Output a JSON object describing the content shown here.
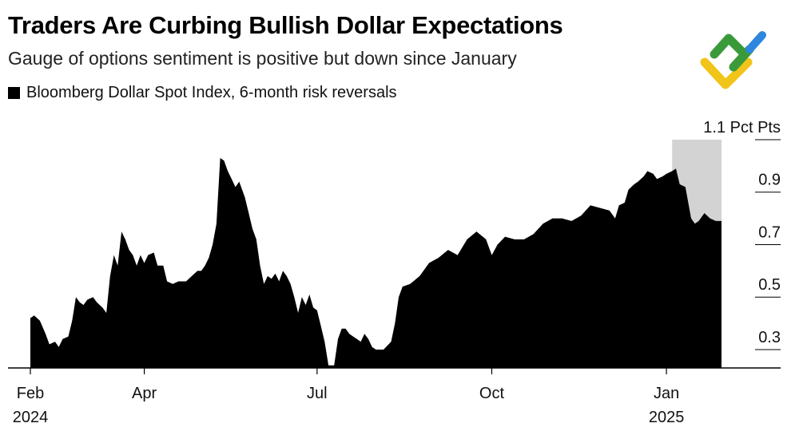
{
  "title": "Traders Are Curbing Bullish Dollar Expectations",
  "subtitle": "Gauge of options sentiment is positive but down since January",
  "legend_label": "Bloomberg Dollar Spot Index, 6-month risk reversals",
  "colors": {
    "area": "#000000",
    "highlight": "#d3d3d3",
    "logo_green": "#3a9a3a",
    "logo_yellow": "#f0c419",
    "logo_blue": "#2e86de"
  },
  "logo_icon": "brand-logo-icon",
  "chart_data": {
    "type": "area",
    "title": "Traders Are Curbing Bullish Dollar Expectations",
    "ylabel": "Pct Pts",
    "y_unit_label": "1.1 Pct Pts",
    "ylim": [
      0.23,
      1.1
    ],
    "y_ticks": [
      {
        "value": 1.1,
        "label": "1.1 Pct Pts"
      },
      {
        "value": 0.9,
        "label": "0.9"
      },
      {
        "value": 0.7,
        "label": "0.7"
      },
      {
        "value": 0.5,
        "label": "0.5"
      },
      {
        "value": 0.3,
        "label": "0.3"
      }
    ],
    "x_ticks": [
      {
        "day": 0,
        "line1": "Feb",
        "line2": "2024"
      },
      {
        "day": 60,
        "line1": "Apr",
        "line2": ""
      },
      {
        "day": 151,
        "line1": "Jul",
        "line2": ""
      },
      {
        "day": 243,
        "line1": "Oct",
        "line2": ""
      },
      {
        "day": 335,
        "line1": "Jan",
        "line2": "2025"
      }
    ],
    "x_range_days": [
      0,
      364
    ],
    "highlight_range_days": [
      338,
      364
    ],
    "series": [
      {
        "name": "Bloomberg Dollar Spot Index, 6-month risk reversals",
        "points": [
          [
            0,
            0.42
          ],
          [
            2,
            0.43
          ],
          [
            5,
            0.41
          ],
          [
            8,
            0.36
          ],
          [
            10,
            0.32
          ],
          [
            13,
            0.33
          ],
          [
            15,
            0.31
          ],
          [
            17,
            0.34
          ],
          [
            20,
            0.35
          ],
          [
            22,
            0.41
          ],
          [
            24,
            0.5
          ],
          [
            26,
            0.48
          ],
          [
            28,
            0.47
          ],
          [
            30,
            0.49
          ],
          [
            33,
            0.5
          ],
          [
            35,
            0.48
          ],
          [
            38,
            0.46
          ],
          [
            40,
            0.44
          ],
          [
            42,
            0.58
          ],
          [
            44,
            0.66
          ],
          [
            46,
            0.62
          ],
          [
            48,
            0.75
          ],
          [
            50,
            0.72
          ],
          [
            52,
            0.68
          ],
          [
            54,
            0.66
          ],
          [
            56,
            0.62
          ],
          [
            58,
            0.66
          ],
          [
            60,
            0.63
          ],
          [
            62,
            0.66
          ],
          [
            65,
            0.67
          ],
          [
            67,
            0.62
          ],
          [
            70,
            0.62
          ],
          [
            72,
            0.56
          ],
          [
            75,
            0.55
          ],
          [
            78,
            0.56
          ],
          [
            82,
            0.56
          ],
          [
            85,
            0.58
          ],
          [
            88,
            0.6
          ],
          [
            90,
            0.6
          ],
          [
            92,
            0.62
          ],
          [
            94,
            0.65
          ],
          [
            96,
            0.7
          ],
          [
            98,
            0.78
          ],
          [
            100,
            1.03
          ],
          [
            102,
            1.02
          ],
          [
            104,
            0.98
          ],
          [
            106,
            0.95
          ],
          [
            108,
            0.92
          ],
          [
            110,
            0.94
          ],
          [
            113,
            0.88
          ],
          [
            115,
            0.82
          ],
          [
            117,
            0.76
          ],
          [
            119,
            0.72
          ],
          [
            121,
            0.62
          ],
          [
            123,
            0.55
          ],
          [
            125,
            0.58
          ],
          [
            127,
            0.57
          ],
          [
            129,
            0.59
          ],
          [
            131,
            0.56
          ],
          [
            133,
            0.6
          ],
          [
            135,
            0.58
          ],
          [
            137,
            0.55
          ],
          [
            139,
            0.5
          ],
          [
            141,
            0.44
          ],
          [
            143,
            0.5
          ],
          [
            145,
            0.47
          ],
          [
            147,
            0.51
          ],
          [
            149,
            0.46
          ],
          [
            151,
            0.45
          ],
          [
            153,
            0.39
          ],
          [
            155,
            0.33
          ],
          [
            157,
            0.24
          ],
          [
            160,
            0.24
          ],
          [
            162,
            0.34
          ],
          [
            164,
            0.38
          ],
          [
            166,
            0.38
          ],
          [
            168,
            0.36
          ],
          [
            170,
            0.35
          ],
          [
            172,
            0.34
          ],
          [
            174,
            0.33
          ],
          [
            176,
            0.36
          ],
          [
            178,
            0.34
          ],
          [
            180,
            0.31
          ],
          [
            182,
            0.3
          ],
          [
            186,
            0.3
          ],
          [
            190,
            0.33
          ],
          [
            192,
            0.4
          ],
          [
            194,
            0.5
          ],
          [
            196,
            0.54
          ],
          [
            200,
            0.55
          ],
          [
            205,
            0.58
          ],
          [
            210,
            0.63
          ],
          [
            215,
            0.65
          ],
          [
            220,
            0.68
          ],
          [
            225,
            0.66
          ],
          [
            230,
            0.72
          ],
          [
            235,
            0.75
          ],
          [
            240,
            0.72
          ],
          [
            243,
            0.66
          ],
          [
            246,
            0.7
          ],
          [
            250,
            0.73
          ],
          [
            255,
            0.72
          ],
          [
            260,
            0.72
          ],
          [
            265,
            0.74
          ],
          [
            270,
            0.78
          ],
          [
            275,
            0.8
          ],
          [
            280,
            0.8
          ],
          [
            285,
            0.79
          ],
          [
            290,
            0.81
          ],
          [
            295,
            0.85
          ],
          [
            300,
            0.84
          ],
          [
            305,
            0.83
          ],
          [
            308,
            0.8
          ],
          [
            310,
            0.85
          ],
          [
            313,
            0.86
          ],
          [
            315,
            0.91
          ],
          [
            318,
            0.93
          ],
          [
            320,
            0.94
          ],
          [
            323,
            0.96
          ],
          [
            325,
            0.98
          ],
          [
            328,
            0.97
          ],
          [
            330,
            0.95
          ],
          [
            333,
            0.96
          ],
          [
            335,
            0.97
          ],
          [
            338,
            0.98
          ],
          [
            340,
            0.99
          ],
          [
            342,
            0.93
          ],
          [
            345,
            0.92
          ],
          [
            348,
            0.8
          ],
          [
            350,
            0.78
          ],
          [
            352,
            0.79
          ],
          [
            355,
            0.82
          ],
          [
            358,
            0.8
          ],
          [
            361,
            0.79
          ],
          [
            364,
            0.79
          ]
        ]
      }
    ]
  }
}
